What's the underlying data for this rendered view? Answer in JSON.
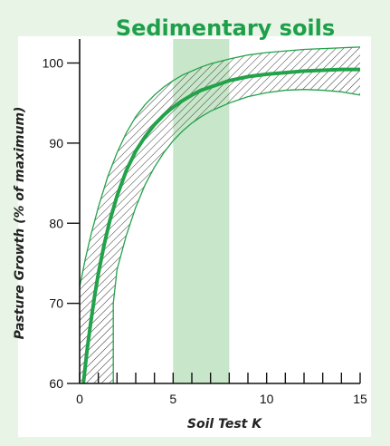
{
  "chart_data": {
    "type": "line",
    "title": "Sedimentary soils",
    "xlabel": "Soil Test K",
    "ylabel": "Pasture Growth (% of maximum)",
    "xlim": [
      0,
      15
    ],
    "ylim": [
      60,
      103
    ],
    "x_ticks": [
      0,
      1,
      2,
      3,
      4,
      5,
      6,
      7,
      8,
      9,
      10,
      11,
      12,
      13,
      14,
      15
    ],
    "x_tick_labels": [
      {
        "value": 0,
        "label": "0"
      },
      {
        "value": 5,
        "label": "5"
      },
      {
        "value": 10,
        "label": "10"
      },
      {
        "value": 15,
        "label": "15"
      }
    ],
    "y_ticks": [
      {
        "value": 60,
        "label": "60"
      },
      {
        "value": 70,
        "label": "70"
      },
      {
        "value": 80,
        "label": "80"
      },
      {
        "value": 90,
        "label": "90"
      },
      {
        "value": 100,
        "label": "100"
      }
    ],
    "highlight_band": {
      "x_start": 5,
      "x_end": 8
    },
    "series": [
      {
        "role": "response-curve",
        "x": [
          0.2,
          0.4,
          0.6,
          0.8,
          1.0,
          1.3,
          1.6,
          2.0,
          2.5,
          3.0,
          3.5,
          4.0,
          4.5,
          5.0,
          5.5,
          6.0,
          6.5,
          7.0,
          7.5,
          8.0,
          9.0,
          10.0,
          11.0,
          12.0,
          13.0,
          14.0,
          15.0
        ],
        "y": [
          60.0,
          64.2,
          67.7,
          70.9,
          73.7,
          77.2,
          80.2,
          83.4,
          86.6,
          89.0,
          90.8,
          92.3,
          93.5,
          94.5,
          95.3,
          96.0,
          96.6,
          97.0,
          97.4,
          97.8,
          98.3,
          98.6,
          98.8,
          99.0,
          99.1,
          99.2,
          99.2
        ]
      },
      {
        "role": "confidence-upper",
        "x": [
          0.0,
          0.3,
          0.6,
          1.0,
          1.5,
          2.0,
          2.5,
          3.0,
          3.5,
          4.0,
          4.5,
          5.0,
          5.5,
          6.0,
          6.5,
          7.0,
          7.5,
          8.0,
          9.0,
          10.0,
          11.0,
          12.0,
          13.0,
          14.0,
          15.0
        ],
        "y": [
          72.0,
          75.5,
          78.5,
          82.0,
          85.8,
          88.8,
          91.3,
          93.3,
          94.8,
          96.0,
          97.0,
          97.8,
          98.5,
          99.0,
          99.5,
          99.9,
          100.2,
          100.5,
          101.0,
          101.3,
          101.5,
          101.7,
          101.8,
          101.9,
          102.0
        ]
      },
      {
        "role": "confidence-lower",
        "x": [
          1.8,
          1.8,
          2.0,
          2.5,
          3.0,
          3.5,
          4.0,
          4.5,
          5.0,
          5.5,
          6.0,
          6.5,
          7.0,
          7.5,
          8.0,
          9.0,
          10.0,
          11.0,
          12.0,
          13.0,
          14.0,
          15.0
        ],
        "y": [
          60.0,
          70.0,
          74.2,
          78.5,
          82.0,
          84.8,
          87.0,
          88.8,
          90.3,
          91.5,
          92.5,
          93.3,
          94.0,
          94.5,
          95.0,
          95.8,
          96.3,
          96.6,
          96.7,
          96.6,
          96.4,
          96.0
        ]
      }
    ],
    "colors": {
      "background": "#e8f4e6",
      "plot_background": "#ffffff",
      "title": "#1e9f4a",
      "curve": "#22a34a",
      "band_edge": "#22a34a",
      "hatch": "#333333",
      "highlight": "#c8e6c9",
      "axis": "#111111"
    }
  }
}
